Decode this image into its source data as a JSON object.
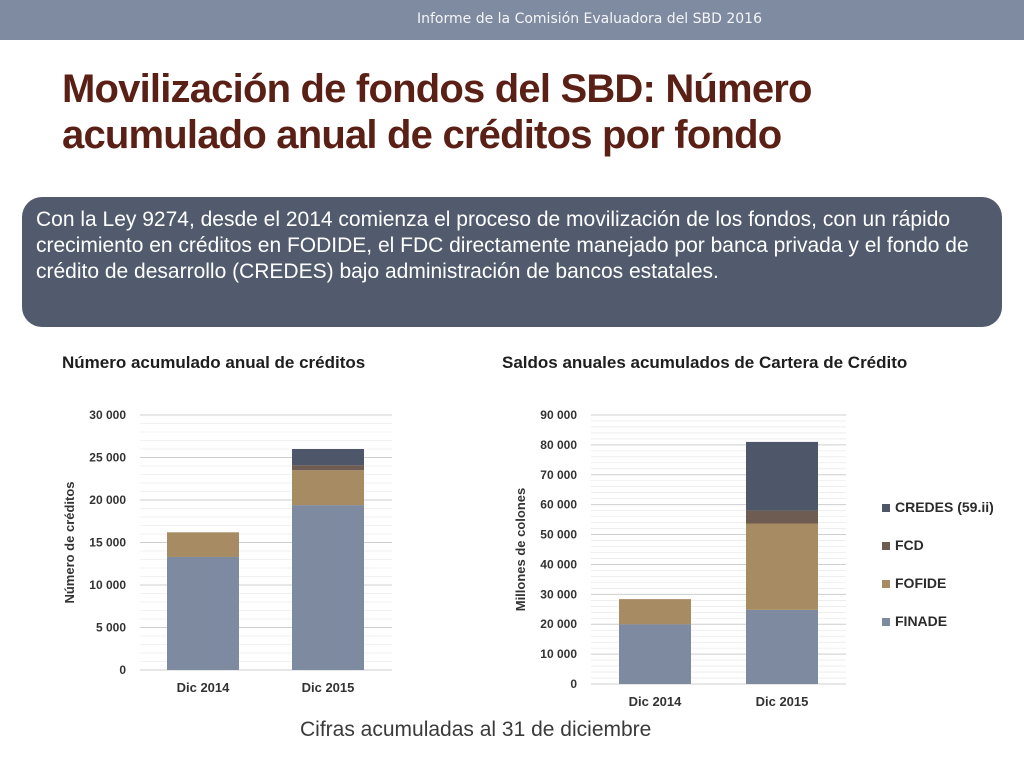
{
  "header": {
    "text": "Informe de la Comisión Evaluadora del SBD 2016"
  },
  "slide": {
    "title": "Movilización de fondos del SBD:  Número acumulado anual de créditos por fondo",
    "callout": "Con la Ley 9274, desde el 2014 comienza el proceso de movilización de los fondos, con un rápido crecimiento en créditos en FODIDE, el FDC directamente manejado por banca privada y el fondo de crédito de desarrollo (CREDES) bajo administración de bancos estatales.",
    "footnote": "Cifras acumuladas al 31 de diciembre"
  },
  "colors": {
    "FINADE": "#7e8aa0",
    "FOFIDE": "#a68b63",
    "FCD": "#6e5b51",
    "CREDES": "#4d5769",
    "header_bar": "#7f8ba0",
    "callout_bg": "#515b6d",
    "title_text": "#5a1f15"
  },
  "chart_data": [
    {
      "type": "bar",
      "stacked": true,
      "title": "Número acumulado anual de créditos",
      "xlabel": "",
      "ylabel": "Número de créditos",
      "categories": [
        "Dic 2014",
        "Dic 2015"
      ],
      "series": [
        {
          "name": "FINADE",
          "values": [
            13300,
            19400
          ]
        },
        {
          "name": "FOFIDE",
          "values": [
            2900,
            4100
          ]
        },
        {
          "name": "FCD",
          "values": [
            0,
            600
          ]
        },
        {
          "name": "CREDES (59.ii)",
          "values": [
            0,
            1900
          ]
        }
      ],
      "ylim": [
        0,
        30000
      ],
      "yticks": [
        "0",
        "5 000",
        "10 000",
        "15 000",
        "20 000",
        "25 000",
        "30 000"
      ],
      "grid": true,
      "legend": "none"
    },
    {
      "type": "bar",
      "stacked": true,
      "title": "Saldos anuales acumulados de Cartera de Crédito",
      "xlabel": "",
      "ylabel": "Millones de colones",
      "categories": [
        "Dic 2014",
        "Dic 2015"
      ],
      "series": [
        {
          "name": "FINADE",
          "values": [
            20000,
            24800
          ]
        },
        {
          "name": "FOFIDE",
          "values": [
            8400,
            28900
          ]
        },
        {
          "name": "FCD",
          "values": [
            0,
            4300
          ]
        },
        {
          "name": "CREDES (59.ii)",
          "values": [
            0,
            23000
          ]
        }
      ],
      "ylim": [
        0,
        90000
      ],
      "yticks": [
        "0",
        "10 000",
        "20 000",
        "30 000",
        "40 000",
        "50 000",
        "60 000",
        "70 000",
        "80 000",
        "90 000"
      ],
      "grid": true,
      "legend": "right"
    }
  ]
}
